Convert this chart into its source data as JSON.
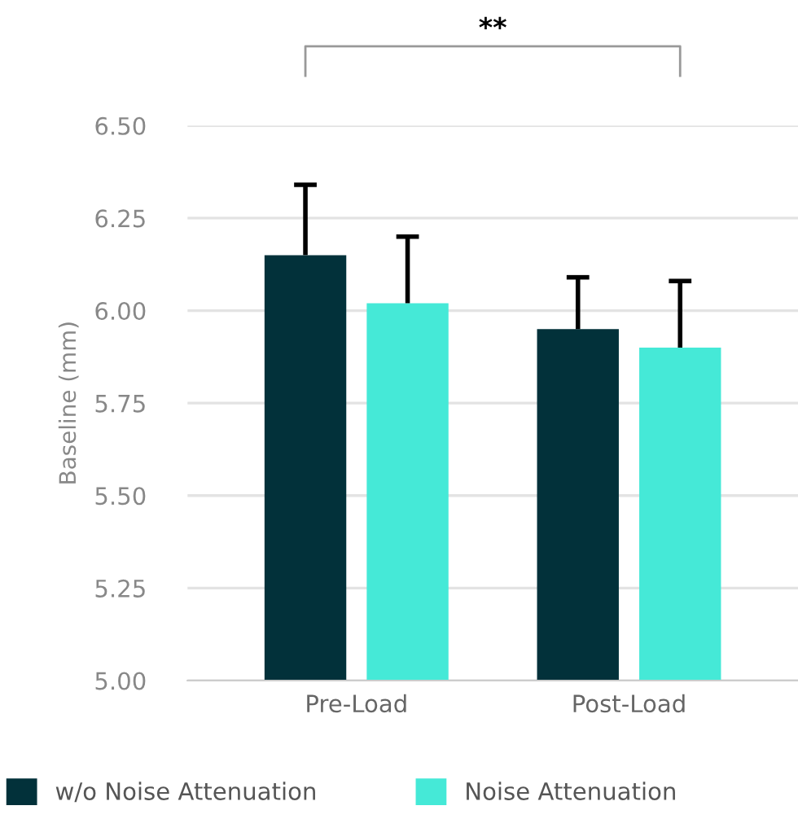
{
  "chart_data": {
    "type": "bar",
    "ylabel": "Baseline (mm)",
    "categories": [
      "Pre-Load",
      "Post-Load"
    ],
    "series": [
      {
        "name": "w/o Noise Attenuation",
        "color": "#02313a",
        "values": [
          6.15,
          5.95
        ],
        "errors": [
          [
            6.15,
            6.34
          ],
          [
            5.95,
            6.09
          ]
        ]
      },
      {
        "name": "Noise Attenuation",
        "color": "#45e9d7",
        "values": [
          6.02,
          5.9
        ],
        "errors": [
          [
            6.02,
            6.2
          ],
          [
            5.9,
            6.08
          ]
        ]
      }
    ],
    "ylim": [
      5.0,
      6.5
    ],
    "yticks": [
      {
        "value": 5.0,
        "label": "5.00"
      },
      {
        "value": 5.25,
        "label": "5.25"
      },
      {
        "value": 5.5,
        "label": "5.50"
      },
      {
        "value": 5.75,
        "label": "5.75"
      },
      {
        "value": 6.0,
        "label": "6.00"
      },
      {
        "value": 6.25,
        "label": "6.25"
      },
      {
        "value": 6.5,
        "label": "6.50"
      }
    ],
    "grid": "y",
    "legend": "bottom",
    "annotations": [
      "**"
    ]
  }
}
